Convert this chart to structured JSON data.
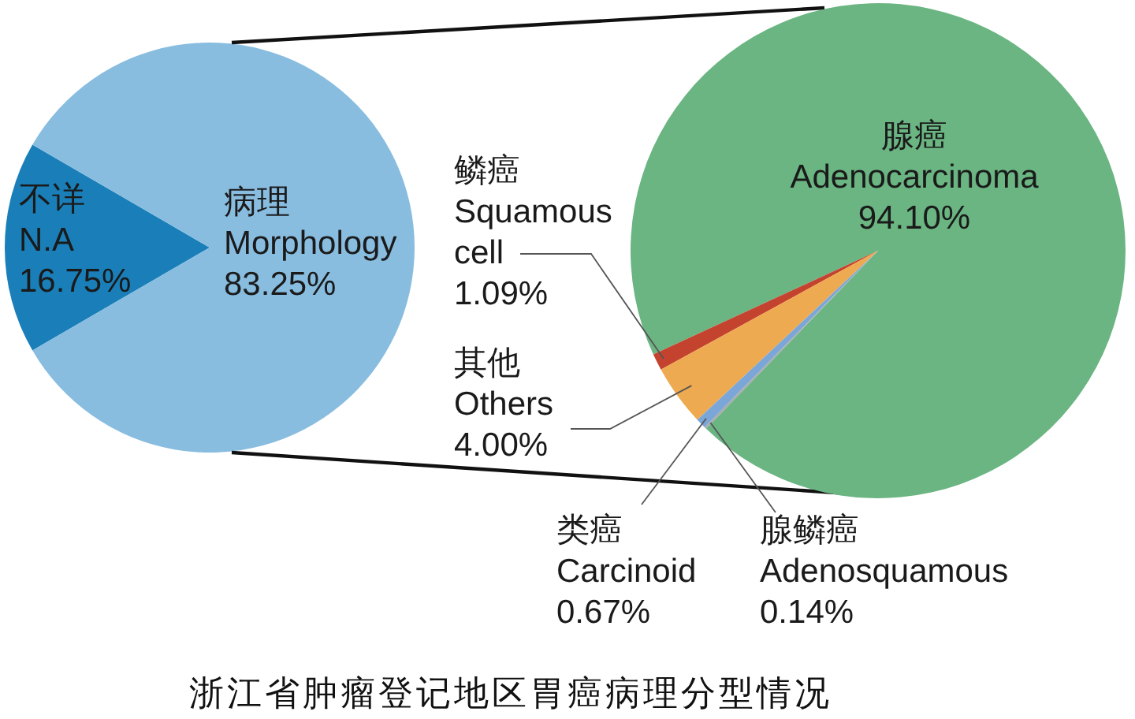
{
  "chart_data": [
    {
      "type": "pie",
      "categories": [
        "不详 N.A",
        "病理 Morphology"
      ],
      "values": [
        16.75,
        83.25
      ],
      "colors": [
        "#1a7fb9",
        "#88bde0"
      ],
      "value_labels": [
        "16.75%",
        "83.25%"
      ],
      "annotations": [
        "浙江省肿瘤登记地区胃癌病理分型情况"
      ]
    },
    {
      "type": "pie",
      "categories": [
        "腺癌 Adenocarcinoma",
        "鳞癌 Squamous cell",
        "其他 Others",
        "类癌 Carcinoid",
        "腺鳞癌 Adenosquamous"
      ],
      "values": [
        94.1,
        1.09,
        4.0,
        0.67,
        0.14
      ],
      "colors": [
        "#6ab582",
        "#c4432e",
        "#eeaa50",
        "#7ba6d8",
        "#a7abaa"
      ],
      "value_labels": [
        "94.10%",
        "1.09%",
        "4.00%",
        "0.67%",
        "0.14%"
      ]
    }
  ]
}
